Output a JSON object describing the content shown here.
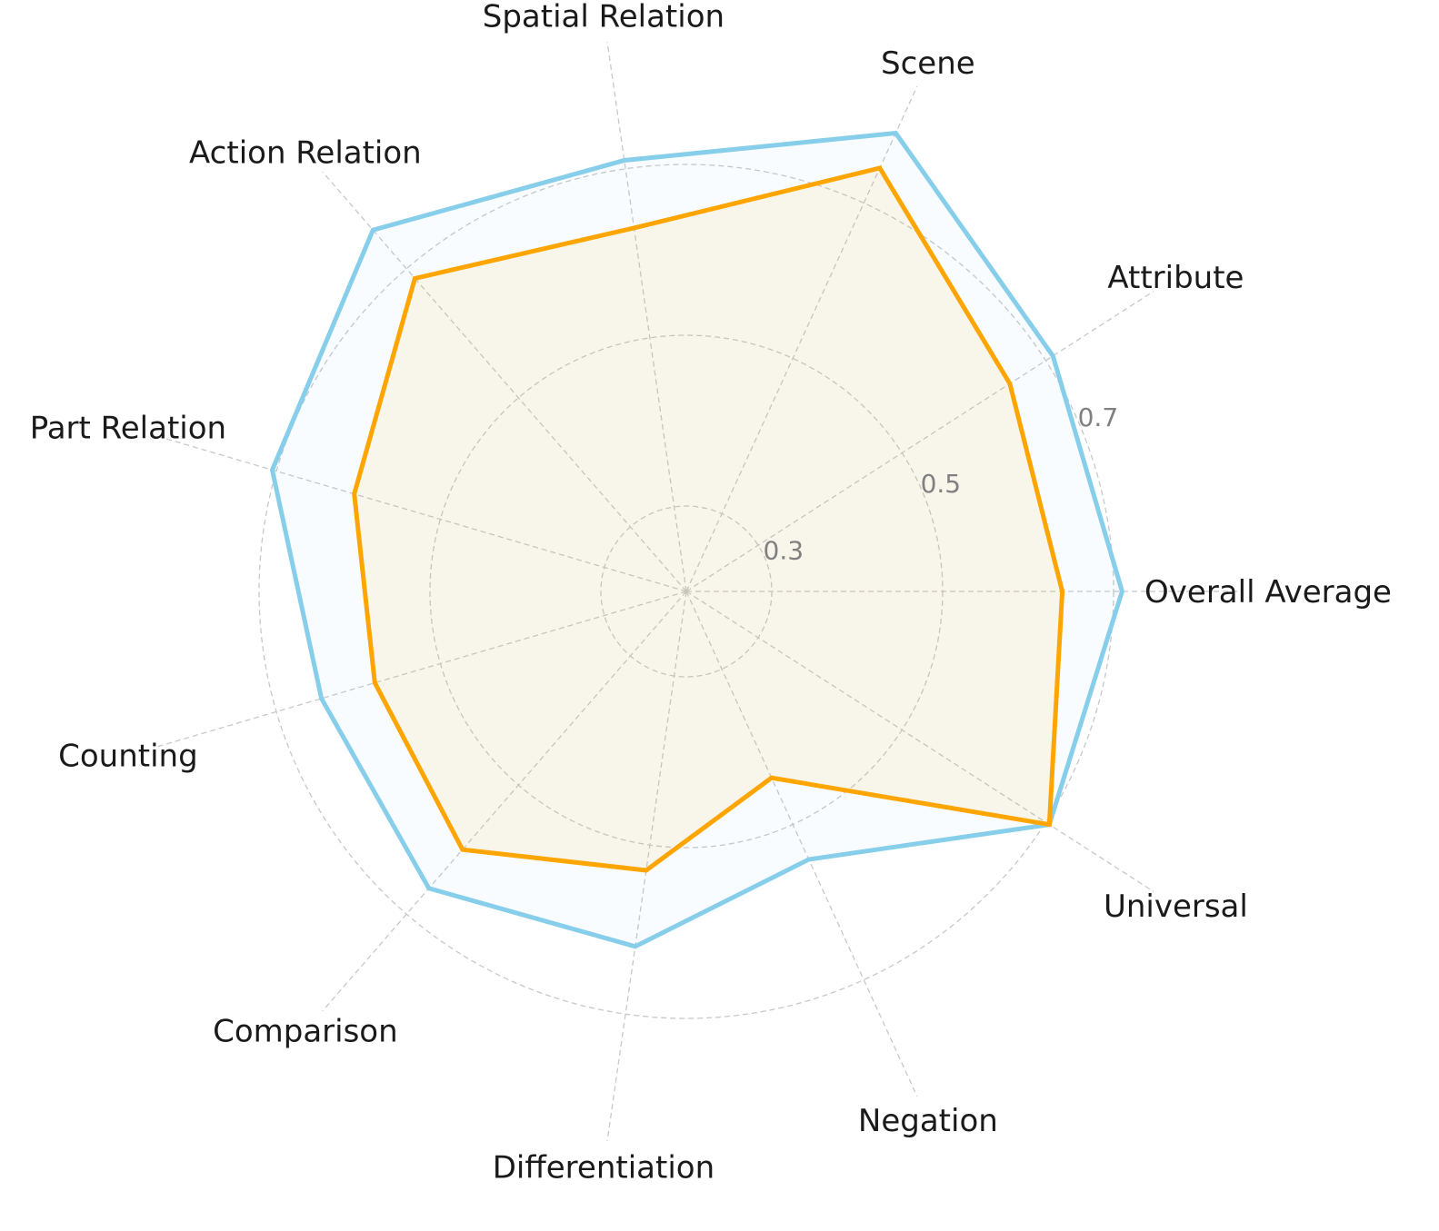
{
  "chart_data": {
    "type": "radar",
    "title": "",
    "categories": [
      "Overall Average",
      "Attribute",
      "Scene",
      "Spatial Relation",
      "Action Relation",
      "Part Relation",
      "Counting",
      "Comparison",
      "Differentiation",
      "Negation",
      "Universal"
    ],
    "series": [
      {
        "color": "#87CEEB",
        "values": [
          0.71,
          0.71,
          0.79,
          0.71,
          0.76,
          0.705,
          0.645,
          0.66,
          0.62,
          0.545,
          0.705
        ]
      },
      {
        "color": "#FFA500",
        "values": [
          0.64,
          0.65,
          0.745,
          0.63,
          0.685,
          0.605,
          0.58,
          0.6,
          0.53,
          0.44,
          0.705
        ]
      }
    ],
    "rlim": [
      0.2,
      0.85
    ],
    "rticks": [
      0.3,
      0.5,
      0.7
    ],
    "rtick_labels": [
      "0.3",
      "0.5",
      "0.7"
    ],
    "grid": true,
    "legend": "none"
  }
}
